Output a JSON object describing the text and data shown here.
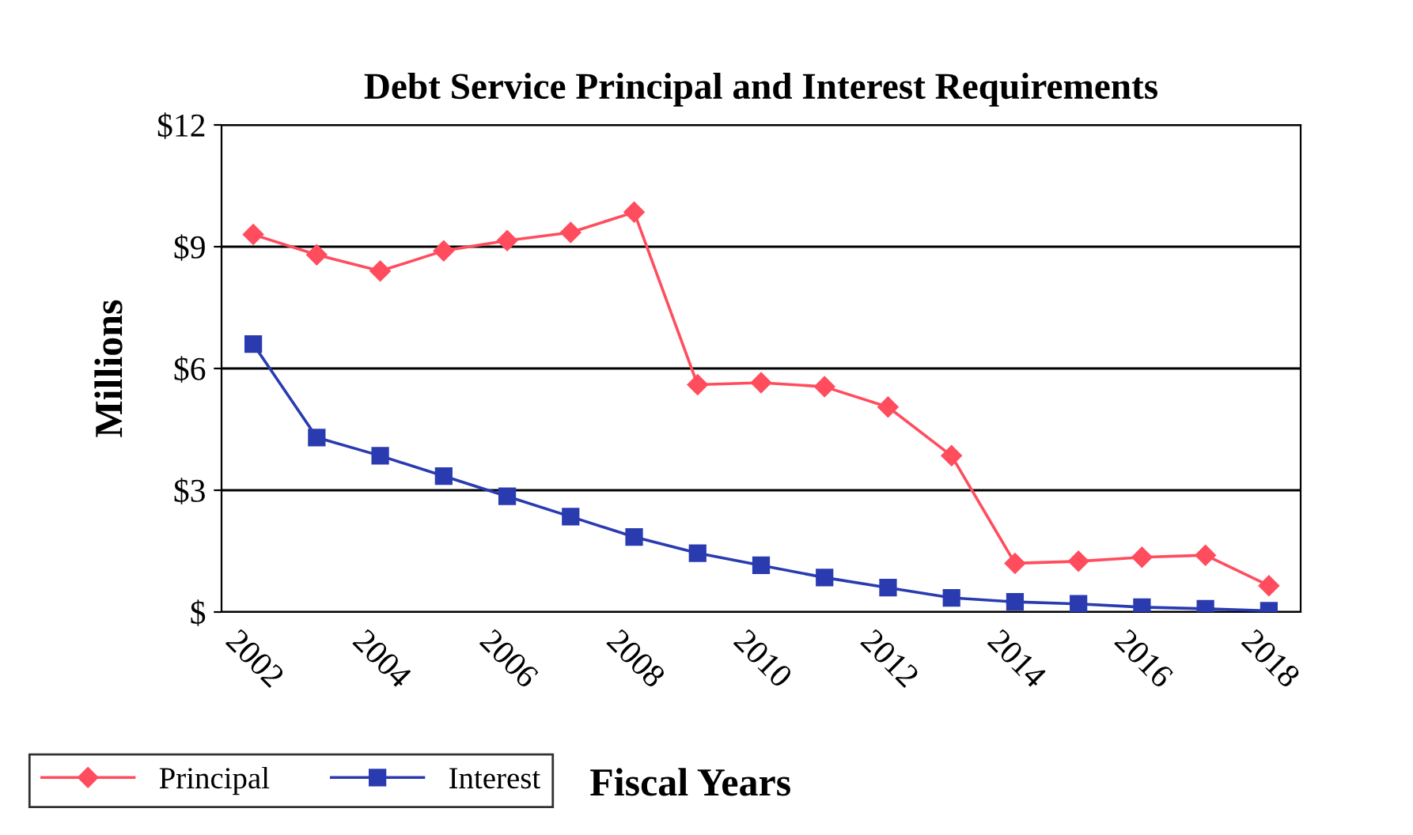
{
  "chart_data": {
    "type": "line",
    "title": "Debt Service Principal and Interest Requirements",
    "xlabel": "Fiscal Years",
    "ylabel": "Millions",
    "categories": [
      "2002",
      null,
      "2004",
      null,
      "2006",
      null,
      "2008",
      null,
      "2010",
      null,
      "2012",
      null,
      "2014",
      null,
      "2016",
      null,
      "2018"
    ],
    "series": [
      {
        "name": "Principal",
        "color": "#ff4d5e",
        "marker": "diamond",
        "values": [
          9.3,
          8.8,
          8.4,
          8.9,
          9.15,
          9.35,
          9.85,
          5.6,
          5.65,
          5.55,
          5.05,
          3.85,
          1.2,
          1.25,
          1.35,
          1.4,
          0.65
        ]
      },
      {
        "name": "Interest",
        "color": "#2a3bb0",
        "marker": "square",
        "values": [
          6.6,
          4.3,
          3.85,
          3.35,
          2.85,
          2.35,
          1.85,
          1.45,
          1.15,
          0.85,
          0.6,
          0.35,
          0.25,
          0.2,
          0.12,
          0.08,
          0.03
        ]
      }
    ],
    "ylim": [
      0,
      12
    ],
    "yticks": [
      {
        "value": 0,
        "label": "$"
      },
      {
        "value": 3,
        "label": "$3"
      },
      {
        "value": 6,
        "label": "$6"
      },
      {
        "value": 9,
        "label": "$9"
      },
      {
        "value": 12,
        "label": "$12"
      }
    ],
    "grid": "y",
    "legend": "bottom left",
    "line_style": "solid"
  }
}
